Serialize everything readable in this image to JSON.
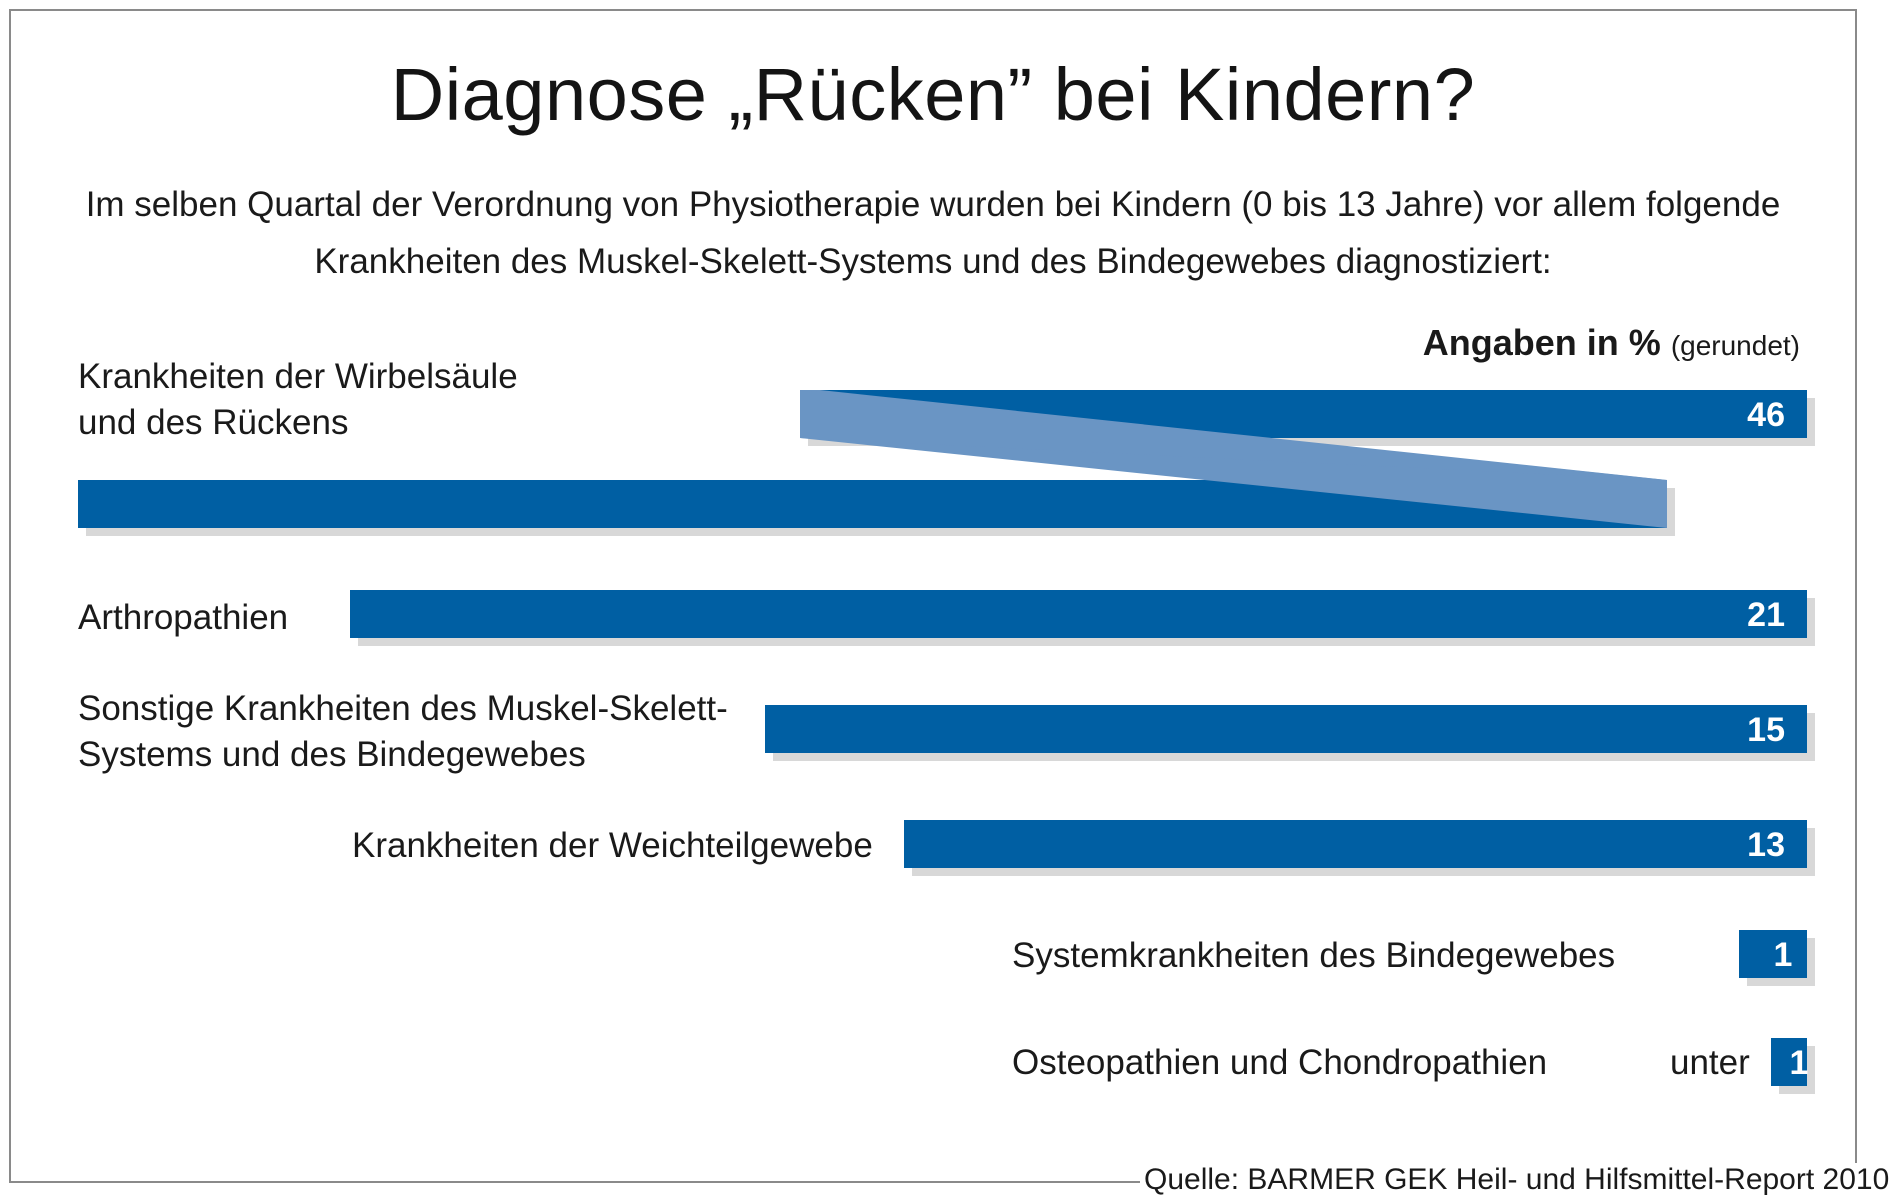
{
  "chart_data": {
    "type": "bar",
    "title": "Diagnose „Rücken” bei Kindern?",
    "subtitle_line1": "Im selben Quartal der Verordnung von Physiotherapie wurden bei Kindern (0 bis 13 Jahre)  vor allem folgende",
    "subtitle_line2": "Krankheiten des Muskel-Skelett-Systems und des Bindegewebes diagnostiziert:",
    "unit_bold": "Angaben in %",
    "unit_small": "(gerundet)",
    "xlabel": "",
    "ylabel": "",
    "xlim": [
      0,
      100
    ],
    "categories": [
      "Krankheiten der Wirbelsäule und des Rückens",
      "Arthropathien",
      "Sonstige Krankheiten des Muskel-Skelett-Systems und des Bindegewebes",
      "Krankheiten der Weichteilgewebe",
      "Systemkrankheiten des Bindegewebes",
      "Osteopathien und Chondropathien"
    ],
    "values": [
      46,
      21,
      15,
      13,
      1,
      1
    ],
    "value_labels": [
      "46",
      "21",
      "15",
      "13",
      "1",
      "1"
    ],
    "value_prefix_last": "unter",
    "label_lines": [
      [
        "Krankheiten der Wirbelsäule",
        "und des Rückens"
      ],
      [
        "Arthropathien"
      ],
      [
        "Sonstige Krankheiten des Muskel-Skelett-",
        "Systems und des Bindegewebes"
      ],
      [
        "Krankheiten der Weichteilgewebe"
      ],
      [
        "Systemkrankheiten des Bindegewebes"
      ],
      [
        "Osteopathien und Chondropathien"
      ]
    ],
    "source": "Quelle: BARMER GEK Heil- und Hilfsmittel-Report 2010",
    "colors": {
      "bar": "#005fa3",
      "fold": "#6a95c4",
      "shadow": "#d8d8d8",
      "value_text": "#ffffff"
    }
  }
}
